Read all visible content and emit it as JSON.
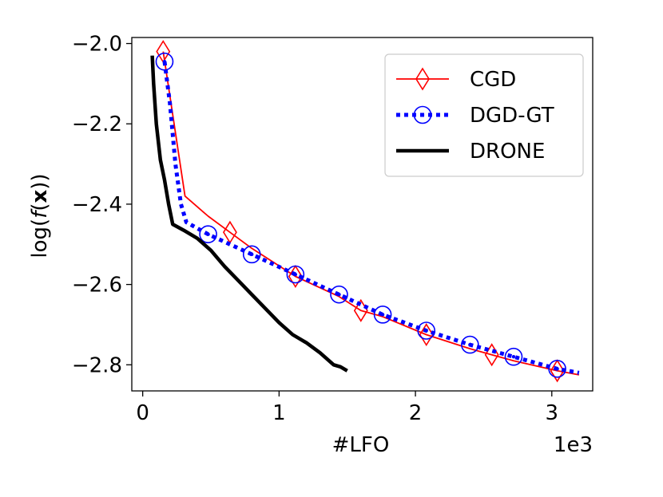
{
  "chart_data": {
    "type": "line",
    "title": "",
    "xlabel": "#LFO",
    "ylabel_parts": [
      "log(",
      "f",
      "(",
      "x",
      "))"
    ],
    "x_offset_label": "1e3",
    "xlim": [
      -0.08,
      3.3
    ],
    "ylim": [
      -2.865,
      -1.985
    ],
    "x_ticks": [
      0,
      1,
      2,
      3
    ],
    "x_tick_labels": [
      "0",
      "1",
      "2",
      "3"
    ],
    "y_ticks": [
      -2.0,
      -2.2,
      -2.4,
      -2.6,
      -2.8
    ],
    "y_tick_labels": [
      "−2.0",
      "−2.2",
      "−2.4",
      "−2.6",
      "−2.8"
    ],
    "grid": false,
    "legend_position": "top-right",
    "series": [
      {
        "name": "CGD",
        "color": "#ff0000",
        "line_style": "solid",
        "marker": "thin-diamond",
        "x": [
          0.15,
          0.31,
          0.48,
          0.64,
          0.8,
          1.12,
          1.44,
          1.6,
          1.76,
          2.08,
          2.4,
          2.56,
          2.72,
          3.04,
          3.2
        ],
        "y": [
          -2.02,
          -2.38,
          -2.43,
          -2.47,
          -2.51,
          -2.58,
          -2.63,
          -2.665,
          -2.68,
          -2.725,
          -2.76,
          -2.775,
          -2.79,
          -2.815,
          -2.825
        ],
        "marker_indices": [
          0,
          3,
          5,
          7,
          9,
          11,
          13
        ]
      },
      {
        "name": "DGD-GT",
        "color": "#0000ff",
        "line_style": "dotted",
        "marker": "circle-dot",
        "x": [
          0.16,
          0.2,
          0.24,
          0.28,
          0.32,
          0.48,
          0.64,
          0.8,
          1.12,
          1.44,
          1.76,
          2.08,
          2.4,
          2.72,
          3.04,
          3.2
        ],
        "y": [
          -2.045,
          -2.15,
          -2.3,
          -2.4,
          -2.445,
          -2.475,
          -2.5,
          -2.525,
          -2.575,
          -2.625,
          -2.675,
          -2.715,
          -2.75,
          -2.78,
          -2.81,
          -2.82
        ],
        "marker_indices": [
          0,
          5,
          7,
          8,
          9,
          10,
          11,
          12,
          13,
          14
        ]
      },
      {
        "name": "DRONE",
        "color": "#000000",
        "line_style": "solid",
        "marker": "none",
        "x": [
          0.07,
          0.08,
          0.1,
          0.13,
          0.16,
          0.19,
          0.22,
          0.3,
          0.4,
          0.5,
          0.6,
          0.7,
          0.8,
          0.9,
          1.0,
          1.1,
          1.2,
          1.3,
          1.4,
          1.45,
          1.5
        ],
        "y": [
          -2.03,
          -2.1,
          -2.2,
          -2.29,
          -2.34,
          -2.4,
          -2.45,
          -2.465,
          -2.485,
          -2.515,
          -2.555,
          -2.59,
          -2.625,
          -2.66,
          -2.695,
          -2.725,
          -2.745,
          -2.77,
          -2.8,
          -2.805,
          -2.815
        ],
        "marker_indices": []
      }
    ]
  }
}
